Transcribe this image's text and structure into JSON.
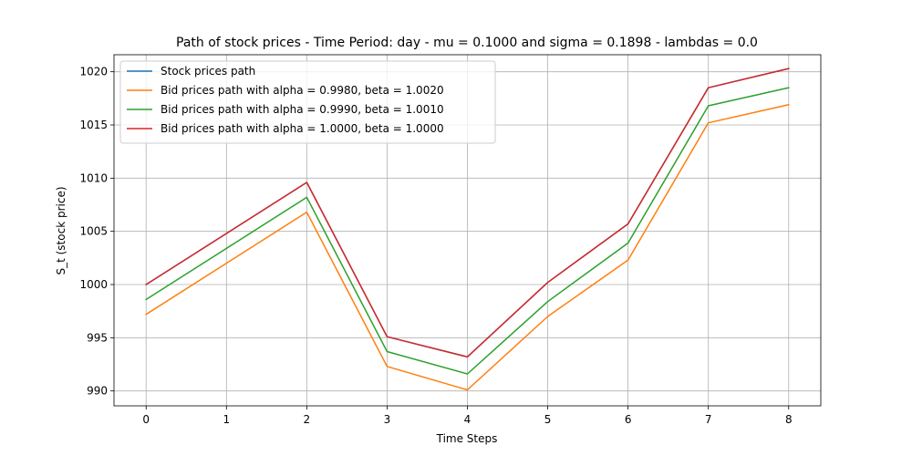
{
  "chart_data": {
    "type": "line",
    "title": "Path of stock prices - Time Period: day - mu = 0.1000 and sigma = 0.1898 - lambdas = 0.0",
    "xlabel": "Time Steps",
    "ylabel": "S_t (stock price)",
    "x": [
      0,
      1,
      2,
      3,
      4,
      5,
      6,
      7,
      8
    ],
    "xlim": [
      -0.4,
      8.4
    ],
    "ylim": [
      988.6,
      1021.6
    ],
    "xticks": [
      0,
      1,
      2,
      3,
      4,
      5,
      6,
      7,
      8
    ],
    "yticks": [
      990,
      995,
      1000,
      1005,
      1010,
      1015,
      1020
    ],
    "grid": true,
    "legend_position": "top-left",
    "series": [
      {
        "name": "Stock prices path",
        "color": "#1f77b4",
        "values": [
          1000.0,
          1004.8,
          1009.6,
          995.1,
          993.2,
          1000.2,
          1005.7,
          1018.5,
          1020.3
        ]
      },
      {
        "name": "Bid prices path with alpha = 0.9980, beta = 1.0020",
        "color": "#ff7f0e",
        "values": [
          997.2,
          1002.0,
          1006.8,
          992.3,
          990.1,
          997.0,
          1002.3,
          1015.2,
          1016.9
        ]
      },
      {
        "name": "Bid prices path with alpha = 0.9990, beta = 1.0010",
        "color": "#2ca02c",
        "values": [
          998.6,
          1003.4,
          1008.2,
          993.7,
          991.6,
          998.4,
          1003.9,
          1016.8,
          1018.5
        ]
      },
      {
        "name": "Bid prices path with alpha = 1.0000, beta = 1.0000",
        "color": "#d62728",
        "values": [
          1000.0,
          1004.8,
          1009.6,
          995.1,
          993.2,
          1000.2,
          1005.7,
          1018.5,
          1020.3
        ]
      }
    ]
  }
}
